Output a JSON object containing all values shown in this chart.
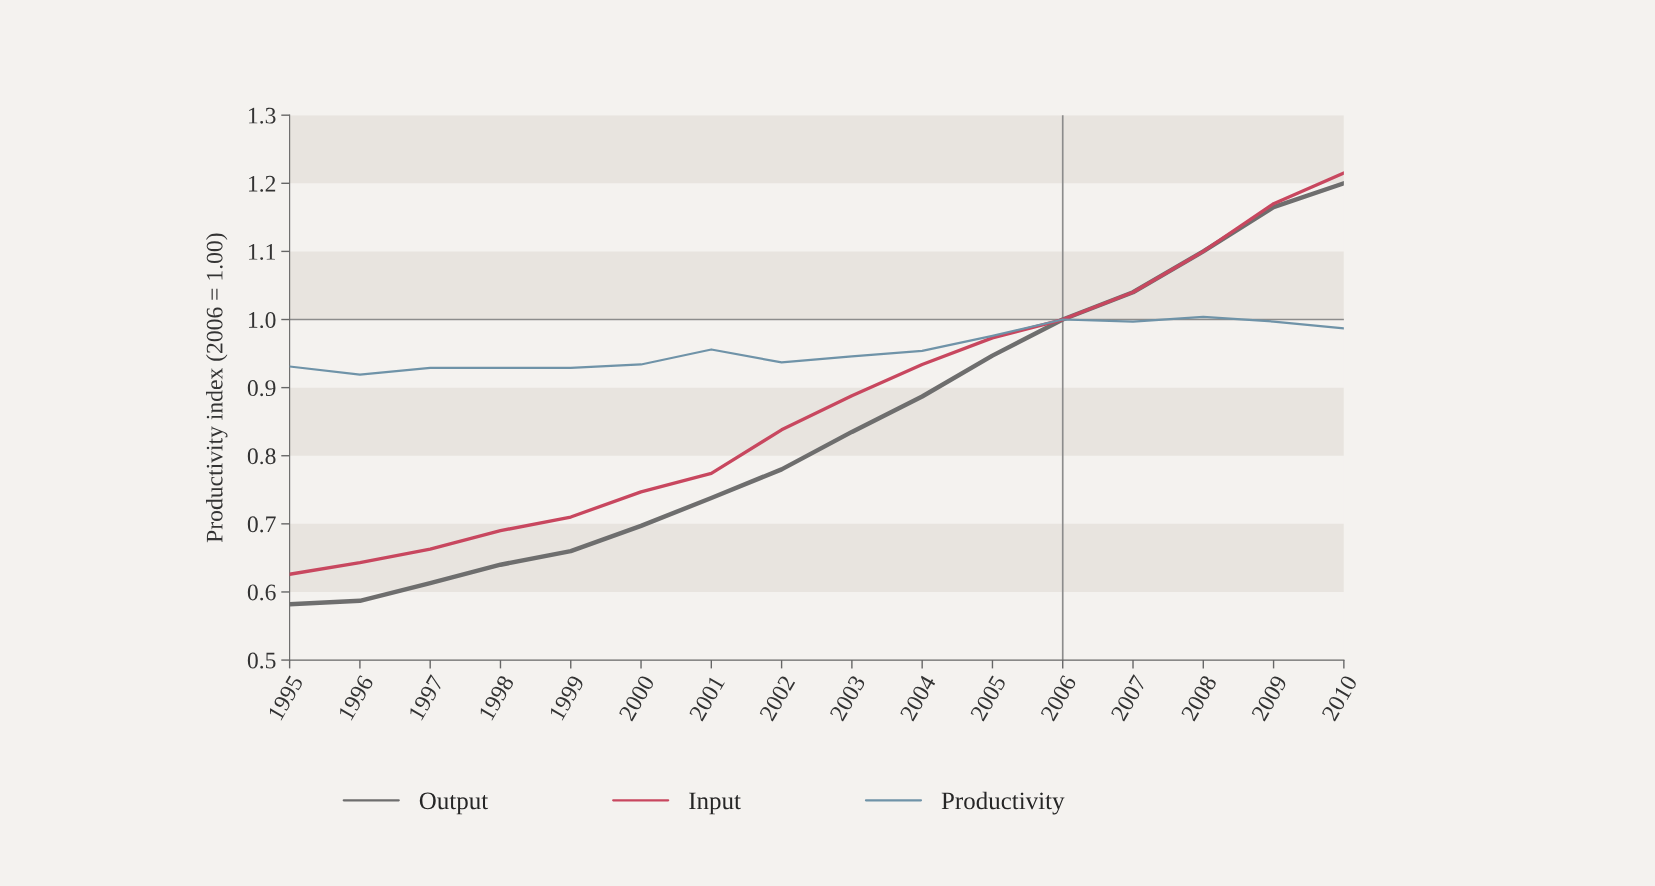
{
  "chart_data": {
    "type": "line",
    "ylabel": "Productivity index (2006 = 1.00)",
    "x": [
      1995,
      1996,
      1997,
      1998,
      1999,
      2000,
      2001,
      2002,
      2003,
      2004,
      2005,
      2006,
      2007,
      2008,
      2009,
      2010
    ],
    "series": [
      {
        "name": "Output",
        "color": "#6e6e6e",
        "values": [
          0.582,
          0.587,
          0.613,
          0.64,
          0.66,
          0.697,
          0.738,
          0.78,
          0.835,
          0.887,
          0.947,
          1.0,
          1.04,
          1.1,
          1.165,
          1.2
        ]
      },
      {
        "name": "Input",
        "color": "#c8475f",
        "values": [
          0.626,
          0.643,
          0.663,
          0.69,
          0.71,
          0.747,
          0.774,
          0.838,
          0.888,
          0.934,
          0.973,
          1.0,
          1.04,
          1.1,
          1.17,
          1.215
        ]
      },
      {
        "name": "Productivity",
        "color": "#6f93a8",
        "values": [
          0.931,
          0.919,
          0.929,
          0.929,
          0.929,
          0.934,
          0.956,
          0.937,
          0.946,
          0.954,
          0.976,
          1.0,
          0.997,
          1.004,
          0.997,
          0.987
        ]
      }
    ],
    "xlim": [
      1995,
      2010
    ],
    "xticks": [
      1995,
      1996,
      1997,
      1998,
      1999,
      2000,
      2001,
      2002,
      2003,
      2004,
      2005,
      2006,
      2007,
      2008,
      2009,
      2010
    ],
    "ylim": [
      0.5,
      1.3
    ],
    "yticks": [
      {
        "value": 0.5,
        "label": "0.5"
      },
      {
        "value": 0.6,
        "label": "0.6"
      },
      {
        "value": 0.7,
        "label": "0.7"
      },
      {
        "value": 0.8,
        "label": "0.8"
      },
      {
        "value": 0.9,
        "label": "0.9"
      },
      {
        "value": 1.0,
        "label": "1.0"
      },
      {
        "value": 1.1,
        "label": "1.1"
      },
      {
        "value": 1.2,
        "label": "1.2"
      },
      {
        "value": 1.3,
        "label": "1.3"
      }
    ],
    "ref_lines": [
      {
        "axis": "y",
        "value": 1.0,
        "color": "#8c8c8c"
      },
      {
        "axis": "x",
        "value": 2006,
        "color": "#8c8c8c"
      }
    ],
    "bands": [
      {
        "axis": "y",
        "from": 0.6,
        "to": 0.7,
        "color": "#e8e4df"
      },
      {
        "axis": "y",
        "from": 0.8,
        "to": 0.9,
        "color": "#e8e4df"
      },
      {
        "axis": "y",
        "from": 1.0,
        "to": 1.1,
        "color": "#e8e4df"
      },
      {
        "axis": "y",
        "from": 1.2,
        "to": 1.3,
        "color": "#e8e4df"
      }
    ],
    "grid": false,
    "legend": "bottom left",
    "marker": "none",
    "line_style": "solid"
  }
}
